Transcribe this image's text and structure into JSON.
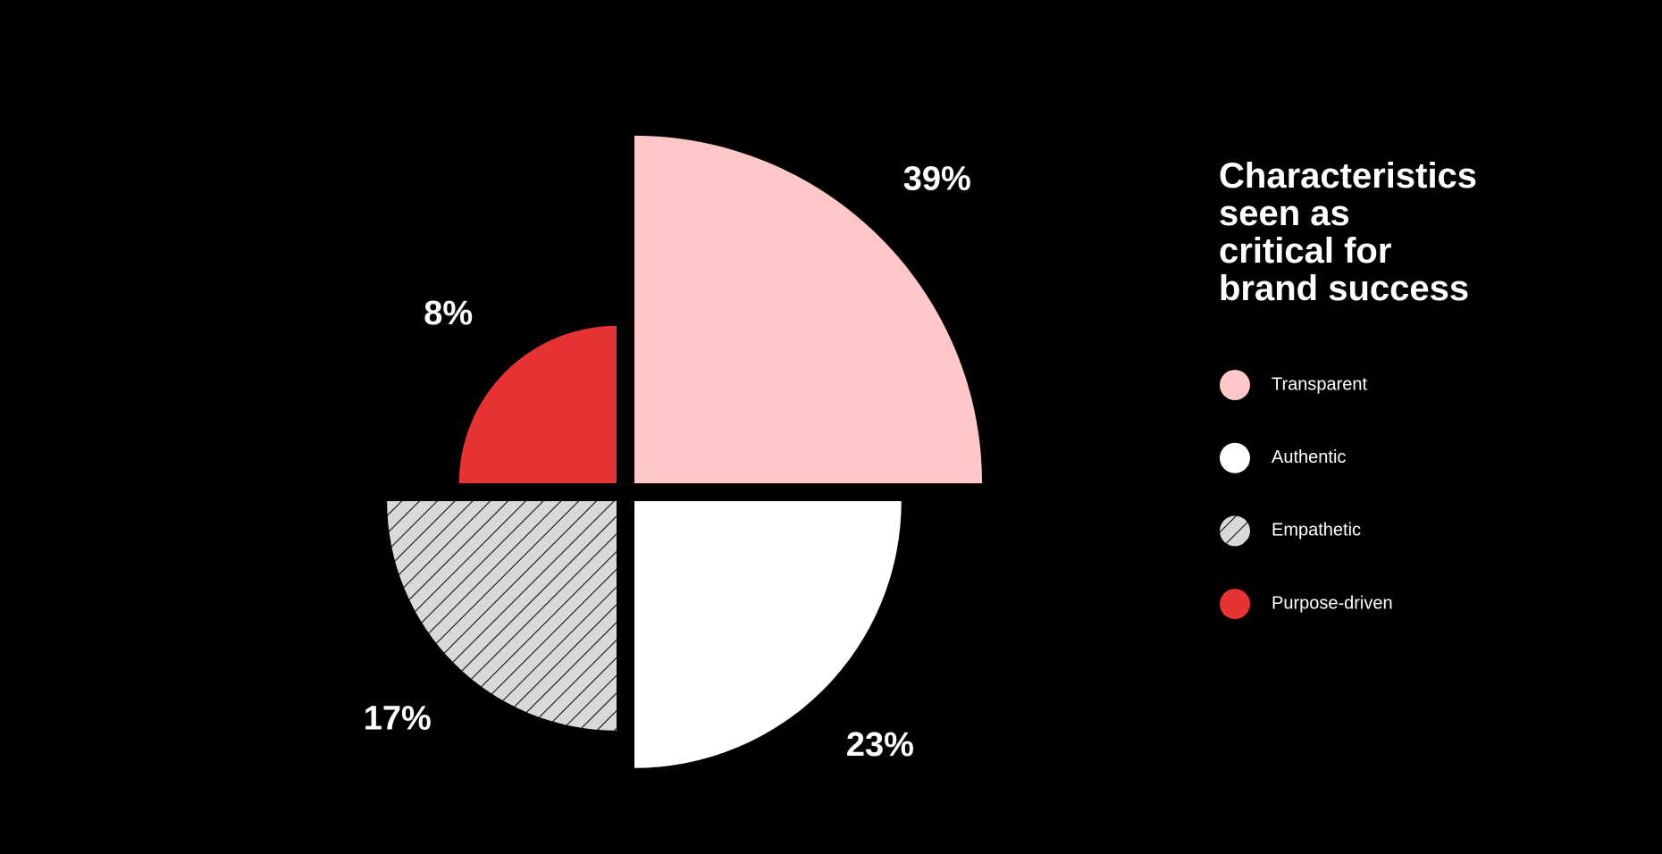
{
  "chart_data": {
    "type": "polar-area",
    "title": "Characteristics\nseen as\ncritical for\nbrand success",
    "categories": [
      "Transparent",
      "Authentic",
      "Empathetic",
      "Purpose-driven"
    ],
    "values": [
      39,
      23,
      17,
      8
    ],
    "value_labels": [
      "39%",
      "23%",
      "17%",
      "8%"
    ],
    "colors": [
      "#ffc7c7",
      "#ffffff",
      "#d9d9d9",
      "#e83335"
    ],
    "hatched": [
      false,
      false,
      true,
      false
    ]
  }
}
